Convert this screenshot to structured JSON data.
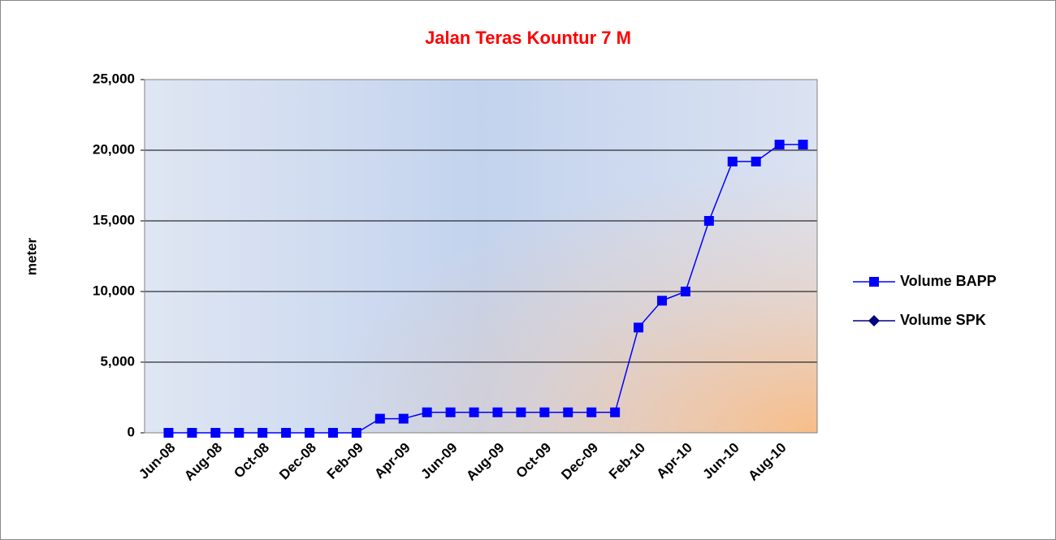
{
  "chart_data": {
    "type": "line",
    "title": "Jalan Teras Kountur 7 M",
    "y_label": "meter",
    "categories": [
      "Jun-08",
      null,
      "Aug-08",
      null,
      "Oct-08",
      null,
      "Dec-08",
      null,
      "Feb-09",
      null,
      "Apr-09",
      null,
      "Jun-09",
      null,
      "Aug-09",
      null,
      "Oct-09",
      null,
      "Dec-09",
      null,
      "Feb-10",
      null,
      "Apr-10",
      null,
      "Jun-10",
      null,
      "Aug-10",
      null
    ],
    "series": [
      {
        "name": "Volume BAPP",
        "color": "#0000ff",
        "marker": "square",
        "values": [
          0,
          0,
          0,
          0,
          0,
          0,
          0,
          0,
          0,
          1000,
          1000,
          1450,
          1450,
          1450,
          1450,
          1450,
          1450,
          1450,
          1450,
          1450,
          7450,
          9350,
          10000,
          15000,
          19200,
          19200,
          20400,
          20400
        ]
      },
      {
        "name": "Volume SPK",
        "color": "#000080",
        "marker": "diamond",
        "values": [
          null,
          null,
          null,
          null,
          null,
          null,
          null,
          null,
          null,
          null,
          null,
          null,
          null,
          null,
          null,
          null,
          null,
          null,
          null,
          null,
          null,
          null,
          null,
          null,
          null,
          null,
          null,
          null
        ]
      }
    ],
    "ylim": [
      0,
      25000
    ],
    "yticks": [
      0,
      {
        "value": 5000,
        "label": "5,000"
      },
      {
        "value": 10000,
        "label": "10,000"
      },
      {
        "value": 15000,
        "label": "15,000"
      },
      {
        "value": 20000,
        "label": "20,000"
      },
      {
        "value": 25000,
        "label": "25,000"
      }
    ],
    "grid": true,
    "legend": "right"
  }
}
